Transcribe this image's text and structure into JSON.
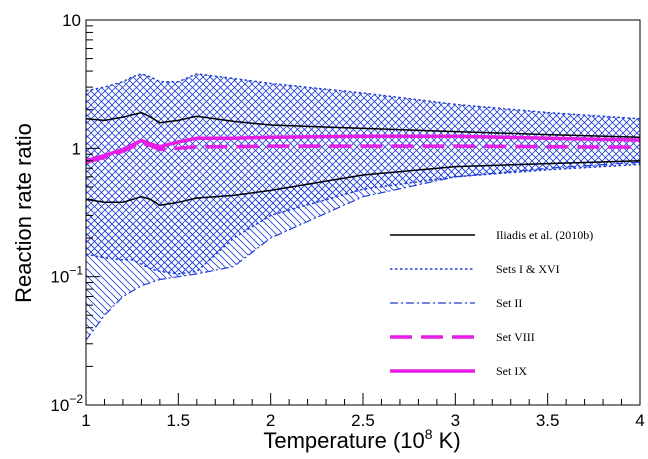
{
  "chart_data": {
    "type": "line",
    "xlabel": "Temperature (10",
    "xlabel_sup": "8",
    "xlabel_unit": " K)",
    "ylabel": "Reaction rate ratio",
    "xlim": [
      1,
      4
    ],
    "ylim": [
      0.01,
      10
    ],
    "yscale": "log",
    "x_ticks": [
      {
        "value": 1,
        "label": "1"
      },
      {
        "value": 1.5,
        "label": "1.5"
      },
      {
        "value": 2,
        "label": "2"
      },
      {
        "value": 2.5,
        "label": "2.5"
      },
      {
        "value": 3,
        "label": "3"
      },
      {
        "value": 3.5,
        "label": "3.5"
      },
      {
        "value": 4,
        "label": "4"
      }
    ],
    "y_ticks": [
      {
        "value": 0.01,
        "base": "10",
        "exp": "−2"
      },
      {
        "value": 0.1,
        "base": "10",
        "exp": "−1"
      },
      {
        "value": 1,
        "base": "1",
        "exp": ""
      },
      {
        "value": 10,
        "base": "10",
        "exp": ""
      }
    ],
    "grid": false,
    "legend_position": "bottom-right",
    "bands": [
      {
        "name": "Sets I & XVI",
        "color": "#1f3fd8",
        "hatch": "crosshatch",
        "x": [
          1.0,
          1.1,
          1.2,
          1.25,
          1.3,
          1.35,
          1.4,
          1.5,
          1.6,
          1.8,
          2.0,
          2.5,
          3.0,
          3.5,
          4.0
        ],
        "upper": [
          2.8,
          3.0,
          3.3,
          3.6,
          3.8,
          3.6,
          3.3,
          3.3,
          3.8,
          3.5,
          3.2,
          2.7,
          2.2,
          1.9,
          1.7
        ],
        "lower": [
          0.15,
          0.14,
          0.135,
          0.135,
          0.125,
          0.115,
          0.11,
          0.105,
          0.11,
          0.2,
          0.3,
          0.48,
          0.6,
          0.68,
          0.75
        ]
      },
      {
        "name": "Set II",
        "color": "#1f3fd8",
        "hatch": "diagonal",
        "x": [
          1.0,
          1.1,
          1.2,
          1.3,
          1.4,
          1.5,
          1.6,
          1.8,
          2.0,
          2.5,
          3.0,
          3.5,
          4.0
        ],
        "upper": [
          0.3,
          0.29,
          0.28,
          0.27,
          0.29,
          0.31,
          0.33,
          0.38,
          0.46,
          0.62,
          0.72,
          0.78,
          0.85
        ],
        "lower": [
          0.032,
          0.05,
          0.07,
          0.085,
          0.095,
          0.1,
          0.105,
          0.12,
          0.2,
          0.42,
          0.6,
          0.7,
          0.78
        ]
      }
    ],
    "series": [
      {
        "name": "Iliadis et al. (2010b)",
        "color": "#000000",
        "style": "solid",
        "width": 1.5,
        "x": [
          1.0,
          1.1,
          1.2,
          1.3,
          1.35,
          1.4,
          1.5,
          1.6,
          1.8,
          2.0,
          2.5,
          3.0,
          3.5,
          4.0
        ],
        "values": [
          1.7,
          1.65,
          1.75,
          1.9,
          1.75,
          1.58,
          1.65,
          1.78,
          1.62,
          1.52,
          1.43,
          1.35,
          1.28,
          1.22
        ]
      },
      {
        "name": "Iliadis et al. (2010b)",
        "color": "#000000",
        "style": "solid",
        "width": 1.5,
        "x": [
          1.0,
          1.1,
          1.2,
          1.3,
          1.35,
          1.4,
          1.5,
          1.6,
          1.8,
          2.0,
          2.5,
          3.0,
          3.5,
          4.0
        ],
        "values": [
          0.4,
          0.38,
          0.38,
          0.42,
          0.4,
          0.36,
          0.38,
          0.41,
          0.43,
          0.47,
          0.62,
          0.72,
          0.76,
          0.8
        ]
      },
      {
        "name": "Sets I & XVI",
        "color": "#1f3fd8",
        "style": "dotted",
        "width": 1.5,
        "x": [
          1.0,
          1.1,
          1.2,
          1.25,
          1.3,
          1.35,
          1.4,
          1.5,
          1.6,
          1.8,
          2.0,
          2.5,
          3.0,
          3.5,
          4.0
        ],
        "values": [
          2.8,
          3.0,
          3.3,
          3.6,
          3.8,
          3.6,
          3.3,
          3.3,
          3.8,
          3.5,
          3.2,
          2.7,
          2.2,
          1.9,
          1.7
        ]
      },
      {
        "name": "Sets I & XVI",
        "color": "#1f3fd8",
        "style": "dotted",
        "width": 1.5,
        "x": [
          1.0,
          1.1,
          1.2,
          1.25,
          1.3,
          1.35,
          1.4,
          1.5,
          1.6,
          1.8,
          2.0,
          2.5,
          3.0,
          3.5,
          4.0
        ],
        "values": [
          0.15,
          0.14,
          0.135,
          0.135,
          0.125,
          0.115,
          0.11,
          0.105,
          0.11,
          0.2,
          0.3,
          0.48,
          0.6,
          0.68,
          0.75
        ]
      },
      {
        "name": "Set II",
        "color": "#1f3fd8",
        "style": "dashdot",
        "width": 1.2,
        "x": [
          1.0,
          1.1,
          1.2,
          1.3,
          1.4,
          1.5,
          1.6,
          1.8,
          2.0,
          2.5,
          3.0,
          3.5,
          4.0
        ],
        "values": [
          0.032,
          0.05,
          0.07,
          0.085,
          0.095,
          0.1,
          0.105,
          0.12,
          0.2,
          0.42,
          0.6,
          0.7,
          0.78
        ]
      },
      {
        "name": "Set VIII",
        "color": "#e61ee6",
        "style": "dashed",
        "width": 3.5,
        "x": [
          1.0,
          1.1,
          1.2,
          1.3,
          1.35,
          1.4,
          1.5,
          1.6,
          1.8,
          2.0,
          2.5,
          3.0,
          3.5,
          4.0
        ],
        "values": [
          0.78,
          0.85,
          0.95,
          1.1,
          1.05,
          0.98,
          1.0,
          1.03,
          1.03,
          1.04,
          1.04,
          1.04,
          1.03,
          1.02
        ]
      },
      {
        "name": "Set IX",
        "color": "#e61ee6",
        "style": "solid",
        "width": 3.5,
        "x": [
          1.0,
          1.1,
          1.2,
          1.3,
          1.35,
          1.4,
          1.5,
          1.6,
          1.8,
          2.0,
          2.5,
          3.0,
          3.5,
          4.0
        ],
        "values": [
          0.8,
          0.88,
          0.98,
          1.15,
          1.08,
          1.03,
          1.12,
          1.2,
          1.2,
          1.22,
          1.24,
          1.24,
          1.2,
          1.16
        ]
      }
    ],
    "legend": [
      {
        "label": "Iliadis et al. (2010b)",
        "color": "#000000",
        "style": "solid",
        "width": 1.5
      },
      {
        "label": "Sets I & XVI",
        "color": "#1f3fd8",
        "style": "dotted",
        "width": 1.5
      },
      {
        "label": "Set II",
        "color": "#1f3fd8",
        "style": "dashdot",
        "width": 1.2
      },
      {
        "label": "Set VIII",
        "color": "#e61ee6",
        "style": "dashed",
        "width": 3.5
      },
      {
        "label": "Set IX",
        "color": "#e61ee6",
        "style": "solid",
        "width": 3.5
      }
    ]
  }
}
